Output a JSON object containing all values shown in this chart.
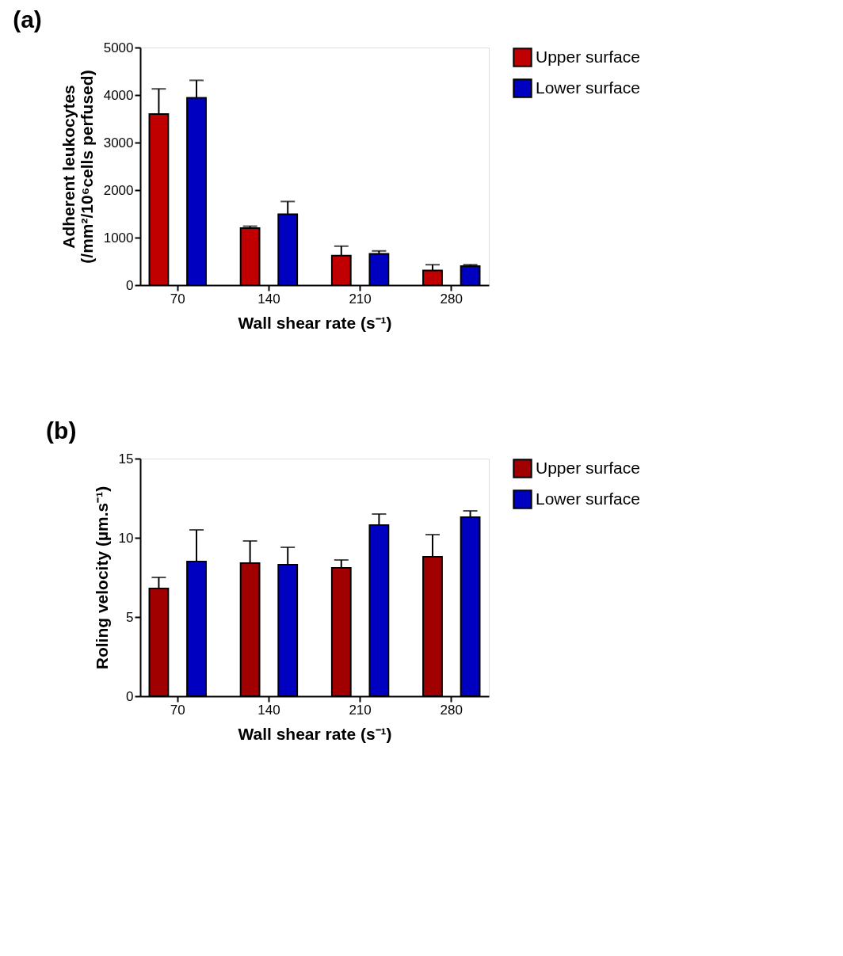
{
  "chart_data": [
    {
      "type": "bar",
      "title": "(a)",
      "xlabel": "Wall shear rate (s⁻¹)",
      "ylabel": "Adherent leukocytes\n(/mm²/10⁶cells perfused)",
      "categories": [
        "70",
        "140",
        "210",
        "280"
      ],
      "series": [
        {
          "name": "Upper surface",
          "color": "#c00000",
          "values": [
            3600,
            1200,
            620,
            310
          ],
          "errors": [
            530,
            40,
            200,
            120
          ]
        },
        {
          "name": "Lower surface",
          "color": "#0000c0",
          "values": [
            3940,
            1490,
            660,
            400
          ],
          "errors": [
            370,
            270,
            60,
            30
          ]
        }
      ],
      "ylim": [
        0,
        5000
      ],
      "yticks": [
        0,
        1000,
        2000,
        3000,
        4000,
        5000
      ],
      "grid": false,
      "legend": "top right"
    },
    {
      "type": "bar",
      "title": "(b)",
      "xlabel": "Wall shear rate (s⁻¹)",
      "ylabel": "Roling velocity (µm.s⁻¹)",
      "categories": [
        "70",
        "140",
        "210",
        "280"
      ],
      "series": [
        {
          "name": "Upper surface",
          "color": "#a00000",
          "values": [
            6.8,
            8.4,
            8.1,
            8.8
          ],
          "errors": [
            0.7,
            1.4,
            0.5,
            1.4
          ]
        },
        {
          "name": "Lower surface",
          "color": "#0000c0",
          "values": [
            8.5,
            8.3,
            10.8,
            11.3
          ],
          "errors": [
            2.0,
            1.1,
            0.7,
            0.4
          ]
        }
      ],
      "ylim": [
        0,
        15
      ],
      "yticks": [
        0,
        5,
        10,
        15
      ],
      "grid": false,
      "legend": "top right"
    }
  ]
}
